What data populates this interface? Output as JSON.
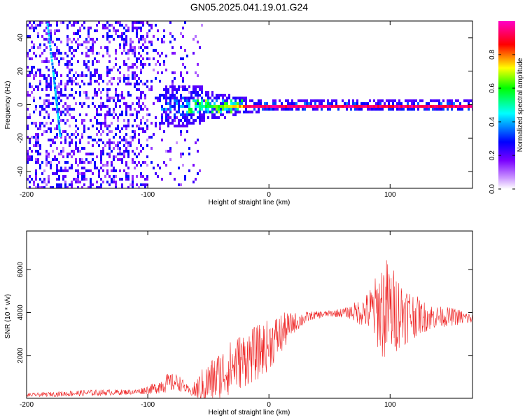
{
  "title": "GN05.2025.041.19.01.G24",
  "chart_data": [
    {
      "type": "heatmap",
      "title": "GN05.2025.041.19.01.G24",
      "xlabel": "Height of straight line (km)",
      "ylabel": "Frequency (Hz)",
      "xlim": [
        -200,
        168
      ],
      "ylim": [
        -50,
        50
      ],
      "x_ticks": [
        "-200",
        "-100",
        "0",
        "100"
      ],
      "y_ticks": [
        "-40",
        "-20",
        "0",
        "20",
        "40"
      ],
      "colorbar": {
        "label": "Normalized spectral amplitude",
        "range": [
          0,
          1
        ],
        "ticks": [
          "0.0",
          "0.2",
          "0.4",
          "0.6",
          "0.8"
        ],
        "colormap": [
          "#ffffff",
          "#7a00ff",
          "#0000ff",
          "#00ffff",
          "#00ff00",
          "#ffff00",
          "#ff0000",
          "#ff00c8"
        ]
      },
      "features": {
        "carrier_line_hz": 0,
        "carrier_start_km": -60,
        "curved_track": [
          [
            -183,
            50
          ],
          [
            -178,
            20
          ],
          [
            -175,
            0
          ],
          [
            -172,
            -20
          ]
        ],
        "scatter_extent_km": [
          -200,
          -55
        ]
      },
      "grid": false
    },
    {
      "type": "line",
      "xlabel": "Height of straight line (km)",
      "ylabel": "SNR (10 * v/v)",
      "xlim": [
        -200,
        168
      ],
      "ylim": [
        0,
        7800
      ],
      "x_ticks": [
        "-200",
        "-100",
        "0",
        "100"
      ],
      "y_ticks": [
        "2000",
        "4000",
        "6000"
      ],
      "line_color": "#ee2222",
      "series_envelope": {
        "x": [
          -200,
          -150,
          -110,
          -95,
          -85,
          -75,
          -65,
          -55,
          -40,
          -25,
          -10,
          0,
          10,
          20,
          35,
          50,
          65,
          80,
          90,
          95,
          100,
          110,
          125,
          140,
          155,
          168
        ],
        "mean": [
          150,
          250,
          300,
          450,
          700,
          750,
          300,
          500,
          1100,
          1700,
          2100,
          2500,
          3000,
          3500,
          3850,
          3950,
          4000,
          4050,
          4100,
          4200,
          4100,
          4000,
          3800,
          3800,
          3800,
          3700
        ],
        "spread": [
          80,
          150,
          120,
          250,
          450,
          400,
          150,
          900,
          1200,
          1300,
          1300,
          1200,
          1000,
          500,
          200,
          150,
          250,
          800,
          1800,
          2600,
          2200,
          1600,
          800,
          500,
          400,
          250
        ]
      },
      "grid": false
    }
  ]
}
